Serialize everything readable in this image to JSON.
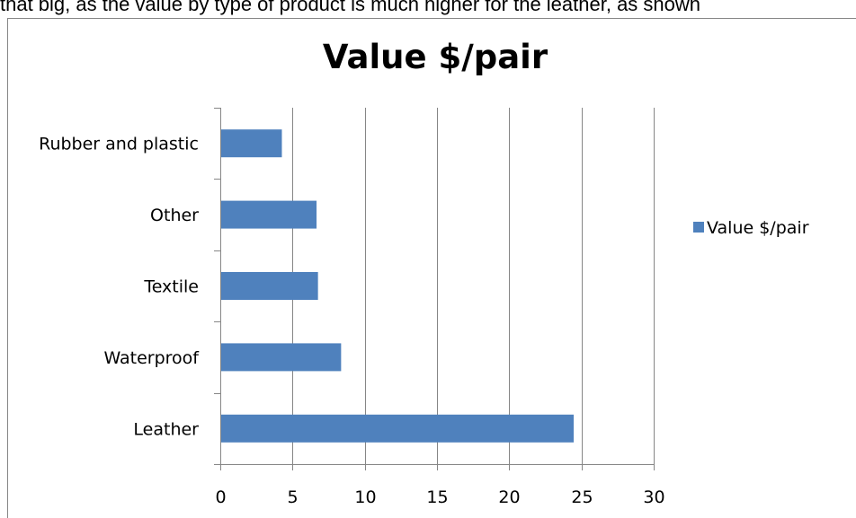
{
  "intro_text": "that big, as the value by type of product is much higher for the leather, as shown",
  "chart_data": {
    "type": "barh",
    "title": "Value $/pair",
    "categories": [
      "Leather",
      "Waterproof",
      "Textile",
      "Other",
      "Rubber and plastic"
    ],
    "series": [
      {
        "name": "Value $/pair",
        "color": "#4f81bd",
        "values": [
          24.4,
          8.3,
          6.7,
          6.6,
          4.2
        ]
      }
    ],
    "xlim": [
      0,
      30
    ],
    "xticks": [
      0,
      5,
      10,
      15,
      20,
      25,
      30
    ],
    "grid": true,
    "legend": "right"
  }
}
